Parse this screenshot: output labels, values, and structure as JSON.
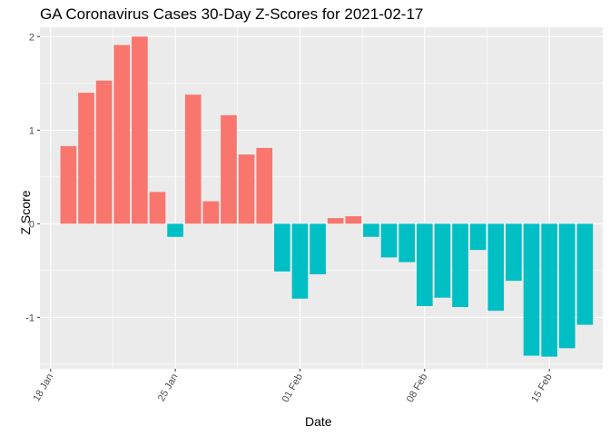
{
  "chart_data": {
    "type": "bar",
    "title": "GA Coronavirus Cases 30-Day Z-Scores for 2021-02-17",
    "xlabel": "Date",
    "ylabel": "Z Score",
    "x_ticks": [
      "18 Jan",
      "25 Jan",
      "01 Feb",
      "08 Feb",
      "15 Feb"
    ],
    "y_ticks": [
      "-1",
      "0",
      "1",
      "2"
    ],
    "ylim": [
      -1.55,
      2.1
    ],
    "grid": true,
    "colors": {
      "positive": "#F8766D",
      "negative": "#00BFC4",
      "panel": "#EBEBEB",
      "grid": "#FFFFFF"
    },
    "categories": [
      "2021-01-19",
      "2021-01-20",
      "2021-01-21",
      "2021-01-22",
      "2021-01-23",
      "2021-01-24",
      "2021-01-25",
      "2021-01-26",
      "2021-01-27",
      "2021-01-28",
      "2021-01-29",
      "2021-01-30",
      "2021-01-31",
      "2021-02-01",
      "2021-02-02",
      "2021-02-03",
      "2021-02-04",
      "2021-02-05",
      "2021-02-06",
      "2021-02-07",
      "2021-02-08",
      "2021-02-09",
      "2021-02-10",
      "2021-02-11",
      "2021-02-12",
      "2021-02-13",
      "2021-02-14",
      "2021-02-15",
      "2021-02-16",
      "2021-02-17"
    ],
    "values": [
      0.83,
      1.4,
      1.53,
      1.91,
      2.0,
      0.34,
      -0.14,
      1.38,
      0.24,
      1.16,
      0.74,
      0.81,
      -0.51,
      -0.8,
      -0.54,
      0.06,
      0.08,
      -0.14,
      -0.36,
      -0.41,
      -0.88,
      -0.79,
      -0.89,
      -0.28,
      -0.93,
      -0.61,
      -1.41,
      -1.42,
      -1.33,
      -1.08
    ]
  }
}
